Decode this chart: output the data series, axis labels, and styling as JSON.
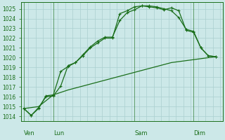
{
  "ylim": [
    1013.5,
    1025.7
  ],
  "yticks": [
    1014,
    1015,
    1016,
    1017,
    1018,
    1019,
    1020,
    1021,
    1022,
    1023,
    1024,
    1025
  ],
  "bg_color": "#cce8e8",
  "grid_color": "#aacfcf",
  "line_color": "#1a6e1a",
  "tick_label_color": "#1a6e1a",
  "x_day_labels": [
    {
      "label": "Ven",
      "x": 0.0
    },
    {
      "label": "Lun",
      "x": 2.0
    },
    {
      "label": "Sam",
      "x": 7.5
    },
    {
      "label": "Dim",
      "x": 11.5
    }
  ],
  "vlines_x": [
    0.0,
    2.0,
    7.5,
    11.5
  ],
  "series1_x": [
    0.0,
    0.5,
    1.0,
    1.5,
    2.0,
    2.5,
    3.0,
    3.5,
    4.0,
    4.5,
    5.0,
    5.5,
    6.0,
    6.5,
    7.0,
    7.5,
    8.0,
    8.5,
    9.0,
    9.5,
    10.0,
    10.5,
    11.0,
    11.5,
    12.0,
    12.5,
    13.0
  ],
  "series1_y": [
    1014.8,
    1014.1,
    1014.8,
    1016.1,
    1016.2,
    1018.6,
    1019.1,
    1019.5,
    1020.3,
    1021.1,
    1021.7,
    1022.1,
    1022.1,
    1023.8,
    1024.6,
    1024.9,
    1025.3,
    1025.3,
    1025.2,
    1025.0,
    1024.8,
    1024.1,
    1022.9,
    1022.7,
    1021.0,
    1020.2,
    1020.1
  ],
  "series2_x": [
    0.0,
    0.5,
    1.0,
    1.5,
    2.0,
    2.5,
    3.0,
    3.5,
    4.0,
    4.5,
    5.0,
    5.5,
    6.0,
    6.5,
    7.0,
    7.5,
    8.0,
    8.5,
    9.0,
    9.5,
    10.0,
    10.5,
    11.0,
    11.5,
    12.0,
    12.5,
    13.0
  ],
  "series2_y": [
    1014.8,
    1014.1,
    1014.9,
    1016.0,
    1016.1,
    1017.1,
    1019.2,
    1019.5,
    1020.2,
    1021.0,
    1021.5,
    1022.0,
    1022.0,
    1024.5,
    1024.8,
    1025.2,
    1025.3,
    1025.2,
    1025.1,
    1024.9,
    1025.1,
    1024.8,
    1022.8,
    1022.6,
    1021.0,
    1020.2,
    1020.1
  ],
  "series3_x": [
    0.0,
    1.0,
    2.0,
    3.0,
    4.0,
    5.0,
    6.0,
    7.0,
    8.0,
    9.0,
    10.0,
    11.0,
    12.0,
    13.0
  ],
  "series3_y": [
    1014.8,
    1015.0,
    1016.2,
    1016.7,
    1017.1,
    1017.5,
    1017.9,
    1018.3,
    1018.7,
    1019.1,
    1019.5,
    1019.7,
    1019.9,
    1020.1
  ],
  "xmin": -0.2,
  "xmax": 13.5
}
